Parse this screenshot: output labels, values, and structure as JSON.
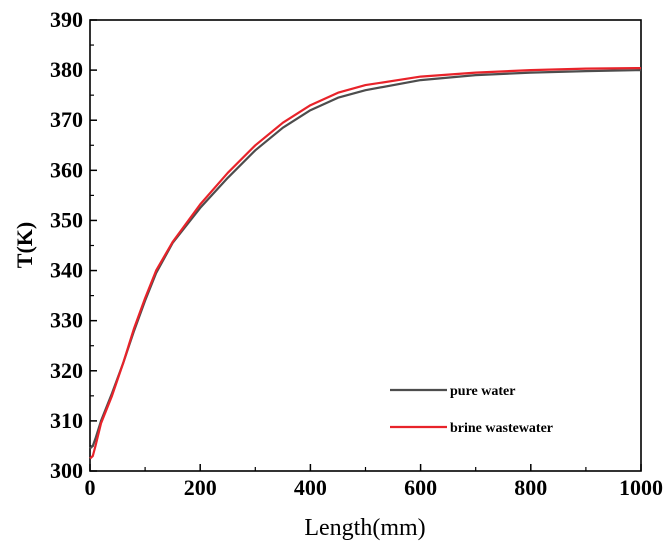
{
  "chart_data": {
    "type": "line",
    "title": "",
    "xlabel": "Length(mm)",
    "ylabel": "T(K)",
    "xlim": [
      0,
      1000
    ],
    "ylim": [
      300,
      390
    ],
    "xticks": [
      0,
      200,
      400,
      600,
      800,
      1000
    ],
    "yticks": [
      300,
      310,
      320,
      330,
      340,
      350,
      360,
      370,
      380,
      390
    ],
    "xtick_labels": [
      "0",
      "200",
      "400",
      "600",
      "800",
      "1000"
    ],
    "ytick_labels": [
      "300",
      "310",
      "320",
      "330",
      "340",
      "350",
      "360",
      "370",
      "380",
      "390"
    ],
    "grid": false,
    "legend_position": "bottom-right",
    "series": [
      {
        "name": "pure water",
        "color": "#4d4d4d",
        "x": [
          0,
          5,
          10,
          20,
          40,
          60,
          80,
          100,
          120,
          150,
          200,
          250,
          300,
          350,
          400,
          450,
          500,
          600,
          700,
          800,
          900,
          1000
        ],
        "y": [
          304.5,
          305,
          306.5,
          310,
          315.5,
          321.5,
          328,
          334,
          339.5,
          345.5,
          352.5,
          358.5,
          364,
          368.5,
          372,
          374.5,
          376,
          378,
          379,
          379.5,
          379.8,
          380
        ]
      },
      {
        "name": "brine wastewater",
        "color": "#e8232a",
        "x": [
          0,
          5,
          10,
          20,
          40,
          60,
          80,
          100,
          120,
          150,
          200,
          250,
          300,
          350,
          400,
          450,
          500,
          600,
          700,
          800,
          900,
          1000
        ],
        "y": [
          302.5,
          303,
          305,
          309.5,
          315,
          321.5,
          328.5,
          334.5,
          340,
          345.7,
          353.2,
          359.5,
          365,
          369.5,
          373,
          375.5,
          377,
          378.7,
          379.5,
          380,
          380.3,
          380.4
        ]
      }
    ]
  }
}
